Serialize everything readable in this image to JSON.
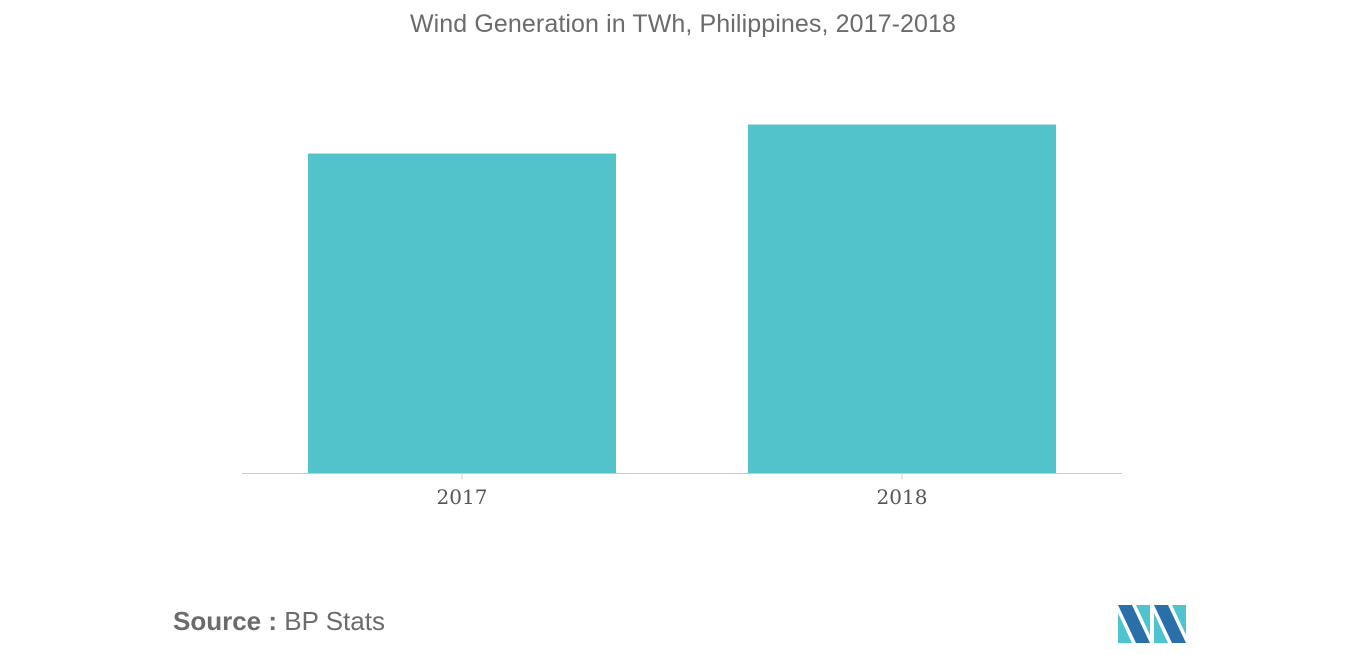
{
  "title": "Wind Generation in TWh, Philippines, 2017-2018",
  "source": {
    "label": "Source :",
    "text": "BP Stats"
  },
  "colors": {
    "bar": "#52C3CA",
    "axis": "#cccccc",
    "title": "#6b6b6b",
    "logo_dark": "#2b6fa8",
    "logo_light": "#4fc3d0"
  },
  "logo": {
    "icon": "mordor-intelligence-logo-icon"
  },
  "chart_data": {
    "type": "bar",
    "title": "Wind Generation in TWh, Philippines, 2017-2018",
    "categories": [
      "2017",
      "2018"
    ],
    "values": [
      1.1,
      1.2
    ],
    "xlabel": "",
    "ylabel": "",
    "ylim": [
      0,
      1.25
    ],
    "grid": false,
    "legend": "none"
  }
}
